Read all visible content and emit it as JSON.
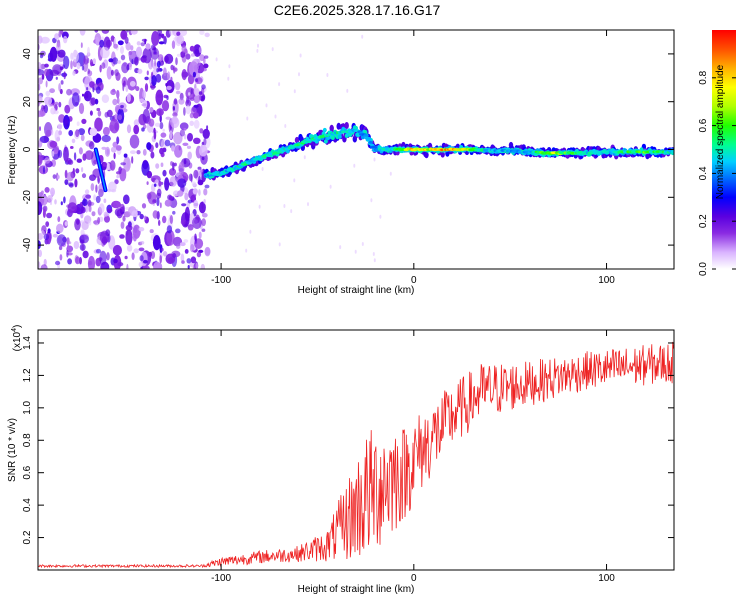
{
  "title": "C2E6.2025.328.17.16.G17",
  "chart_data": [
    {
      "type": "heatmap",
      "name": "spectrogram",
      "xlabel": "Height of straight line (km)",
      "ylabel": "Frequency (Hz)",
      "xlim": [
        -195,
        135
      ],
      "ylim": [
        -50,
        50
      ],
      "xticks": [
        -100,
        0,
        100
      ],
      "yticks": [
        -40,
        -20,
        0,
        20,
        40
      ],
      "colorbar": {
        "label": "Normalized spectral amplitude",
        "range": [
          0,
          1
        ],
        "ticks": [
          0.0,
          0.2,
          0.4,
          0.6,
          0.8
        ],
        "colormap": [
          "#ffffff",
          "#d9b3ff",
          "#8a2be2",
          "#5a00e0",
          "#0000ff",
          "#0060ff",
          "#00d0ff",
          "#00ff90",
          "#20ff00",
          "#b0ff00",
          "#ffff00",
          "#ffb000",
          "#ff5000",
          "#ff0000"
        ]
      },
      "noise_region": {
        "x": [
          -195,
          -107
        ],
        "y": [
          -50,
          50
        ],
        "amplitude": 0.22
      },
      "ridge": [
        {
          "x": -108,
          "y": -11,
          "amplitude": 0.45
        },
        {
          "x": -100,
          "y": -10,
          "amplitude": 0.45
        },
        {
          "x": -90,
          "y": -7,
          "amplitude": 0.5
        },
        {
          "x": -80,
          "y": -3.5,
          "amplitude": 0.5
        },
        {
          "x": -70,
          "y": -1,
          "amplitude": 0.5
        },
        {
          "x": -60,
          "y": 2,
          "amplitude": 0.52
        },
        {
          "x": -50,
          "y": 5,
          "amplitude": 0.55
        },
        {
          "x": -40,
          "y": 7,
          "amplitude": 0.5
        },
        {
          "x": -30,
          "y": 8,
          "amplitude": 0.45
        },
        {
          "x": -25,
          "y": 6,
          "amplitude": 0.4
        },
        {
          "x": -20,
          "y": 0,
          "amplitude": 0.45
        },
        {
          "x": -10,
          "y": 0,
          "amplitude": 0.5
        },
        {
          "x": 0,
          "y": 0,
          "amplitude": 0.8
        },
        {
          "x": 10,
          "y": 0,
          "amplitude": 0.75
        },
        {
          "x": 20,
          "y": 0,
          "amplitude": 0.85
        },
        {
          "x": 30,
          "y": 0,
          "amplitude": 0.6
        },
        {
          "x": 40,
          "y": -0.5,
          "amplitude": 0.45
        },
        {
          "x": 50,
          "y": -0.5,
          "amplitude": 0.45
        },
        {
          "x": 60,
          "y": -1,
          "amplitude": 0.45
        },
        {
          "x": 70,
          "y": -1.5,
          "amplitude": 0.7
        },
        {
          "x": 80,
          "y": -1.5,
          "amplitude": 0.6
        },
        {
          "x": 90,
          "y": -1.5,
          "amplitude": 0.5
        },
        {
          "x": 100,
          "y": -1,
          "amplitude": 0.45
        },
        {
          "x": 110,
          "y": -1,
          "amplitude": 0.55
        },
        {
          "x": 120,
          "y": -1,
          "amplitude": 0.6
        },
        {
          "x": 135,
          "y": -1,
          "amplitude": 0.5
        }
      ],
      "secondary_streak": [
        {
          "x": -165,
          "y": 0
        },
        {
          "x": -160,
          "y": -17
        }
      ]
    },
    {
      "type": "line",
      "name": "snr",
      "xlabel": "Height of straight line (km)",
      "ylabel": "SNR (10 * v/v)",
      "scale_label": "(x10",
      "scale_exponent": "4",
      "xlim": [
        -195,
        135
      ],
      "ylim": [
        0,
        1.48
      ],
      "xticks": [
        -100,
        0,
        100
      ],
      "yticks": [
        0.2,
        0.4,
        0.6,
        0.8,
        1.0,
        1.2,
        1.4
      ],
      "line_color": "#ee2222",
      "envelope": [
        {
          "x": -195,
          "mean": 0.025,
          "spread": 0.008
        },
        {
          "x": -110,
          "mean": 0.025,
          "spread": 0.008
        },
        {
          "x": -100,
          "mean": 0.05,
          "spread": 0.03
        },
        {
          "x": -80,
          "mean": 0.08,
          "spread": 0.04
        },
        {
          "x": -60,
          "mean": 0.1,
          "spread": 0.05
        },
        {
          "x": -45,
          "mean": 0.15,
          "spread": 0.1
        },
        {
          "x": -35,
          "mean": 0.3,
          "spread": 0.25
        },
        {
          "x": -25,
          "mean": 0.45,
          "spread": 0.4
        },
        {
          "x": -15,
          "mean": 0.55,
          "spread": 0.4
        },
        {
          "x": -5,
          "mean": 0.6,
          "spread": 0.3
        },
        {
          "x": 5,
          "mean": 0.75,
          "spread": 0.25
        },
        {
          "x": 20,
          "mean": 0.95,
          "spread": 0.2
        },
        {
          "x": 35,
          "mean": 1.1,
          "spread": 0.18
        },
        {
          "x": 60,
          "mean": 1.15,
          "spread": 0.14
        },
        {
          "x": 90,
          "mean": 1.23,
          "spread": 0.12
        },
        {
          "x": 135,
          "mean": 1.28,
          "spread": 0.13
        }
      ]
    }
  ]
}
